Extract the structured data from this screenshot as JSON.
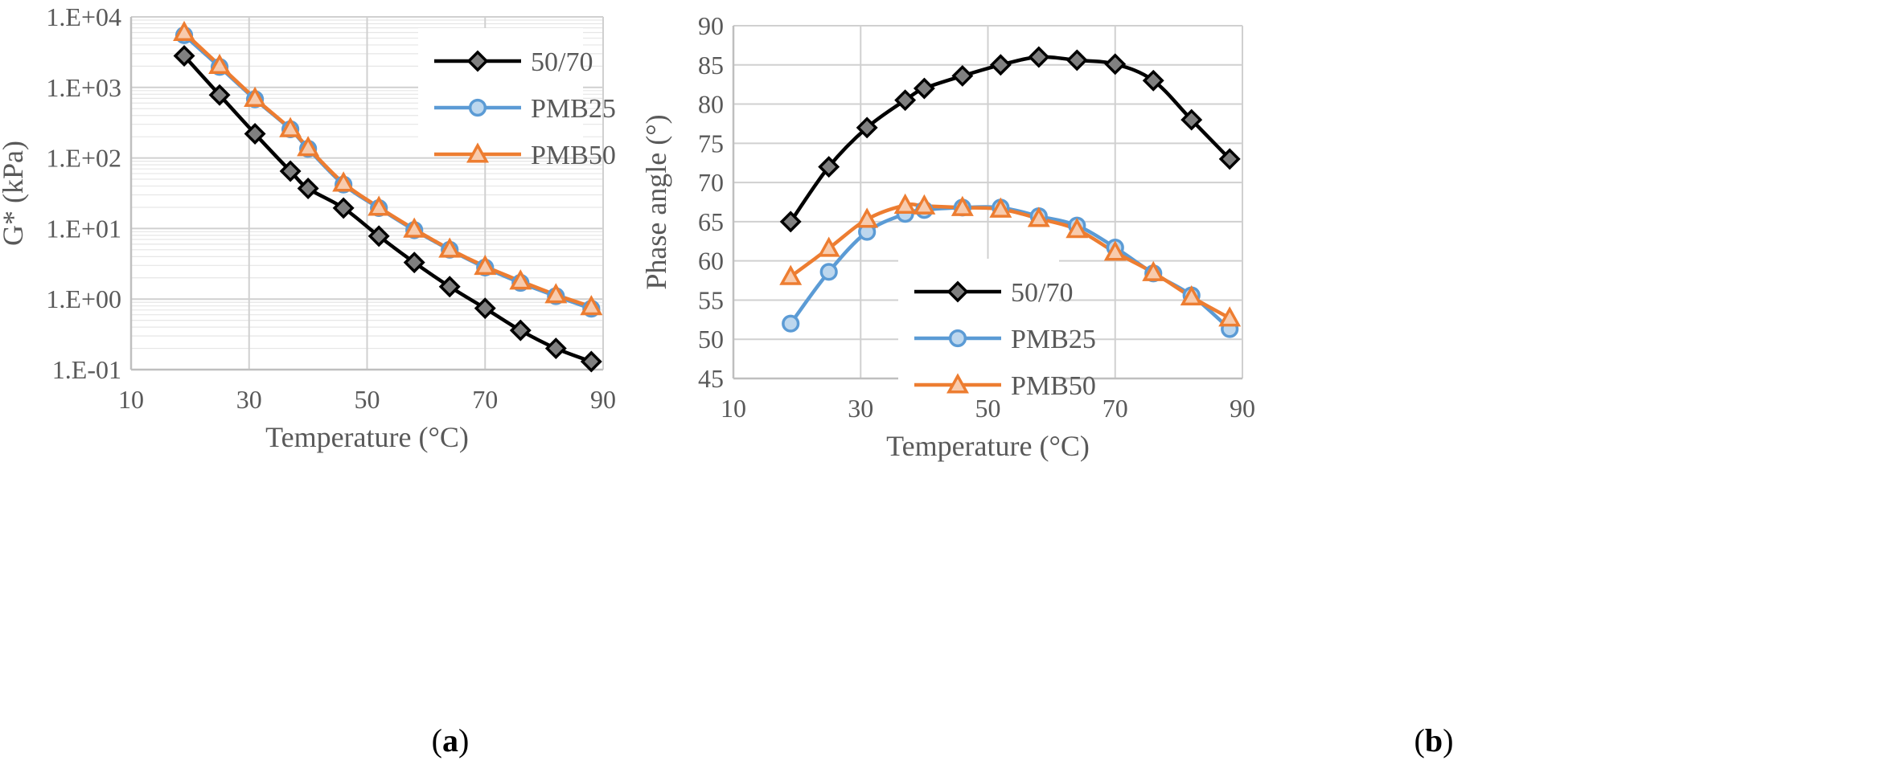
{
  "chart_data": [
    {
      "panel": "a",
      "type": "line",
      "yscale": "log",
      "xlabel": "Temperature (°C)",
      "ylabel": "G* (kPa)",
      "xlim": [
        10,
        90
      ],
      "ylim": [
        0.1,
        10000
      ],
      "xticks": [
        10,
        30,
        50,
        70,
        90
      ],
      "yticks": [
        0.1,
        1,
        10,
        100,
        1000,
        10000
      ],
      "yticklabels": [
        "1.E-01",
        "1.E+00",
        "1.E+01",
        "1.E+02",
        "1.E+03",
        "1.E+04"
      ],
      "legend_position": "top-right",
      "series": [
        {
          "name": "50/70",
          "marker": "diamond",
          "color": "#000000",
          "marker_fill": "#808080",
          "x": [
            19,
            25,
            31,
            37,
            40,
            46,
            52,
            58,
            64,
            70,
            76,
            82,
            88
          ],
          "y": [
            2800,
            780,
            220,
            65,
            37,
            19.5,
            7.8,
            3.3,
            1.5,
            0.74,
            0.36,
            0.2,
            0.13
          ]
        },
        {
          "name": "PMB25",
          "marker": "circle",
          "color": "#5B9BD5",
          "marker_fill": "#BDD7EE",
          "x": [
            19,
            25,
            31,
            37,
            40,
            46,
            52,
            58,
            64,
            70,
            76,
            82,
            88
          ],
          "y": [
            5500,
            1950,
            680,
            255,
            135,
            42,
            19.5,
            9.5,
            5.0,
            2.8,
            1.7,
            1.1,
            0.73
          ]
        },
        {
          "name": "PMB50",
          "marker": "triangle",
          "color": "#ED7D31",
          "marker_fill": "#F8CBAD",
          "x": [
            19,
            25,
            31,
            37,
            40,
            46,
            52,
            58,
            64,
            70,
            76,
            82,
            88
          ],
          "y": [
            6000,
            2050,
            700,
            260,
            140,
            44,
            20,
            9.8,
            5.1,
            2.9,
            1.8,
            1.15,
            0.78
          ]
        }
      ]
    },
    {
      "panel": "b",
      "type": "line",
      "xlabel": "Temperature (°C)",
      "ylabel": "Phase angle (°)",
      "xlim": [
        10,
        90
      ],
      "ylim": [
        45,
        90
      ],
      "xticks": [
        10,
        30,
        50,
        70,
        90
      ],
      "yticks": [
        45,
        50,
        55,
        60,
        65,
        70,
        75,
        80,
        85,
        90
      ],
      "legend_position": "bottom-center",
      "series": [
        {
          "name": "50/70",
          "marker": "diamond",
          "color": "#000000",
          "marker_fill": "#808080",
          "x": [
            19,
            25,
            31,
            37,
            40,
            46,
            52,
            58,
            64,
            70,
            76,
            82,
            88
          ],
          "y": [
            65,
            72,
            77,
            80.5,
            82,
            83.6,
            85,
            86,
            85.6,
            85.1,
            83,
            78,
            73
          ]
        },
        {
          "name": "PMB25",
          "marker": "circle",
          "color": "#5B9BD5",
          "marker_fill": "#BDD7EE",
          "x": [
            19,
            25,
            31,
            37,
            40,
            46,
            52,
            58,
            64,
            70,
            76,
            82,
            88
          ],
          "y": [
            52,
            58.6,
            63.7,
            66,
            66.5,
            66.8,
            66.8,
            65.7,
            64.5,
            61.7,
            58.4,
            55.6,
            51.3
          ]
        },
        {
          "name": "PMB50",
          "marker": "triangle",
          "color": "#ED7D31",
          "marker_fill": "#F8CBAD",
          "x": [
            19,
            25,
            31,
            37,
            40,
            46,
            52,
            58,
            64,
            70,
            76,
            82,
            88
          ],
          "y": [
            58,
            61.6,
            65.3,
            67.1,
            67,
            66.8,
            66.6,
            65.4,
            64,
            61.1,
            58.5,
            55.4,
            52.7
          ]
        }
      ]
    }
  ],
  "panel_labels": {
    "a": {
      "open": "(",
      "letter": "a",
      "close": ")"
    },
    "b": {
      "open": "(",
      "letter": "b",
      "close": ")"
    }
  }
}
